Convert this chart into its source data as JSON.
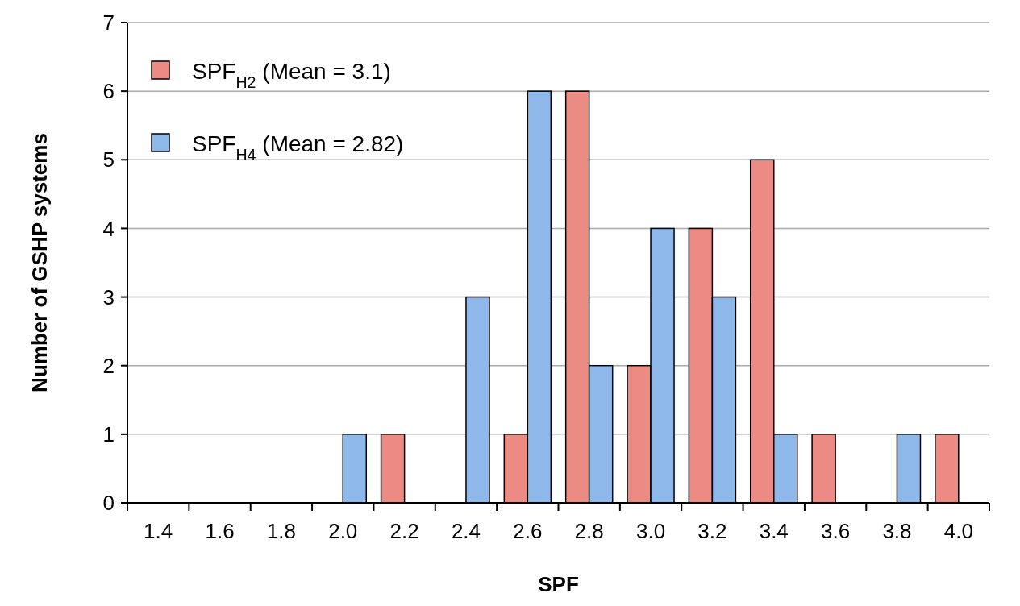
{
  "chart_data": {
    "type": "bar",
    "xlabel": "SPF",
    "ylabel": "Number of GSHP systems",
    "categories": [
      "1.4",
      "1.6",
      "1.8",
      "2.0",
      "2.2",
      "2.4",
      "2.6",
      "2.8",
      "3.0",
      "3.2",
      "3.4",
      "3.6",
      "3.8",
      "4.0"
    ],
    "series": [
      {
        "name": "SPF$_{H2}$ (Mean = 3.1)",
        "color": "#ec8a84",
        "values": [
          0,
          0,
          0,
          0,
          1,
          0,
          1,
          6,
          2,
          4,
          5,
          1,
          0,
          1
        ]
      },
      {
        "name": "SPF$_{H4}$ (Mean = 2.82)",
        "color": "#8fb8ea",
        "values": [
          0,
          0,
          0,
          1,
          0,
          3,
          6,
          2,
          4,
          3,
          1,
          0,
          1,
          0
        ]
      }
    ],
    "ylim": [
      0,
      7
    ],
    "yticks": [
      0,
      1,
      2,
      3,
      4,
      5,
      6,
      7
    ],
    "grid": "y",
    "legend": "top left"
  }
}
